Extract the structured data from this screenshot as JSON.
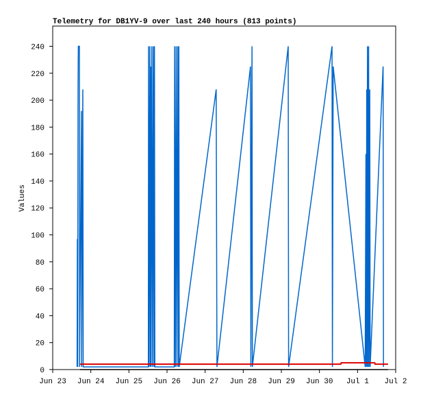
{
  "chart_data": {
    "type": "line",
    "title": "Telemetry for DB1YV-9 over last 240 hours (813 points)",
    "y_label": "Values",
    "xlim": [
      0,
      9
    ],
    "xticks": [
      {
        "value": 0,
        "label": "Jun 23"
      },
      {
        "value": 1,
        "label": "Jun 24"
      },
      {
        "value": 2,
        "label": "Jun 25"
      },
      {
        "value": 3,
        "label": "Jun 26"
      },
      {
        "value": 4,
        "label": "Jun 27"
      },
      {
        "value": 5,
        "label": "Jun 28"
      },
      {
        "value": 6,
        "label": "Jun 29"
      },
      {
        "value": 7,
        "label": "Jun 30"
      },
      {
        "value": 8,
        "label": "Jul 1"
      },
      {
        "value": 9,
        "label": "Jul 2"
      }
    ],
    "ylim": [
      0,
      255
    ],
    "yticks": [
      0,
      20,
      40,
      60,
      80,
      100,
      120,
      140,
      160,
      180,
      200,
      220,
      240
    ],
    "series": [
      {
        "color": "#0066cc",
        "x": [
          0.64,
          0.647,
          0.655,
          0.665,
          0.672,
          0.7,
          0.705,
          0.754,
          0.76,
          0.79,
          0.8,
          2.51,
          2.515,
          2.53,
          2.55,
          2.565,
          2.57,
          2.58,
          2.6,
          2.62,
          2.64,
          2.66,
          2.67,
          2.68,
          3.19,
          3.2,
          3.22,
          3.24,
          3.26,
          3.28,
          3.3,
          3.31,
          3.32,
          4.29,
          4.31,
          5.19,
          5.2,
          5.23,
          5.24,
          6.18,
          6.19,
          7.33,
          7.34,
          7.36,
          8.2,
          8.22,
          8.23,
          8.24,
          8.25,
          8.26,
          8.28,
          8.29,
          8.3,
          8.32,
          8.33,
          8.67,
          8.68
        ],
        "values": [
          2,
          97,
          2,
          208,
          240,
          240,
          2,
          192,
          2,
          208,
          2,
          2,
          240,
          2,
          240,
          2,
          225,
          2,
          240,
          2,
          240,
          2,
          240,
          2,
          2,
          240,
          2,
          240,
          2,
          240,
          2,
          240,
          2,
          208,
          2,
          225,
          2,
          240,
          2,
          240,
          2,
          240,
          2,
          225,
          2,
          160,
          2,
          208,
          2,
          240,
          2,
          240,
          2,
          208,
          2,
          225,
          2
        ]
      },
      {
        "color": "#dd0000",
        "x": [
          0.72,
          7.56,
          7.57,
          8.45,
          8.46,
          8.8
        ],
        "values": [
          4,
          4,
          5,
          5,
          4,
          4
        ]
      },
      {
        "color": "#000000",
        "x": [
          0.72,
          8.8
        ],
        "values": [
          0,
          0
        ]
      }
    ]
  }
}
